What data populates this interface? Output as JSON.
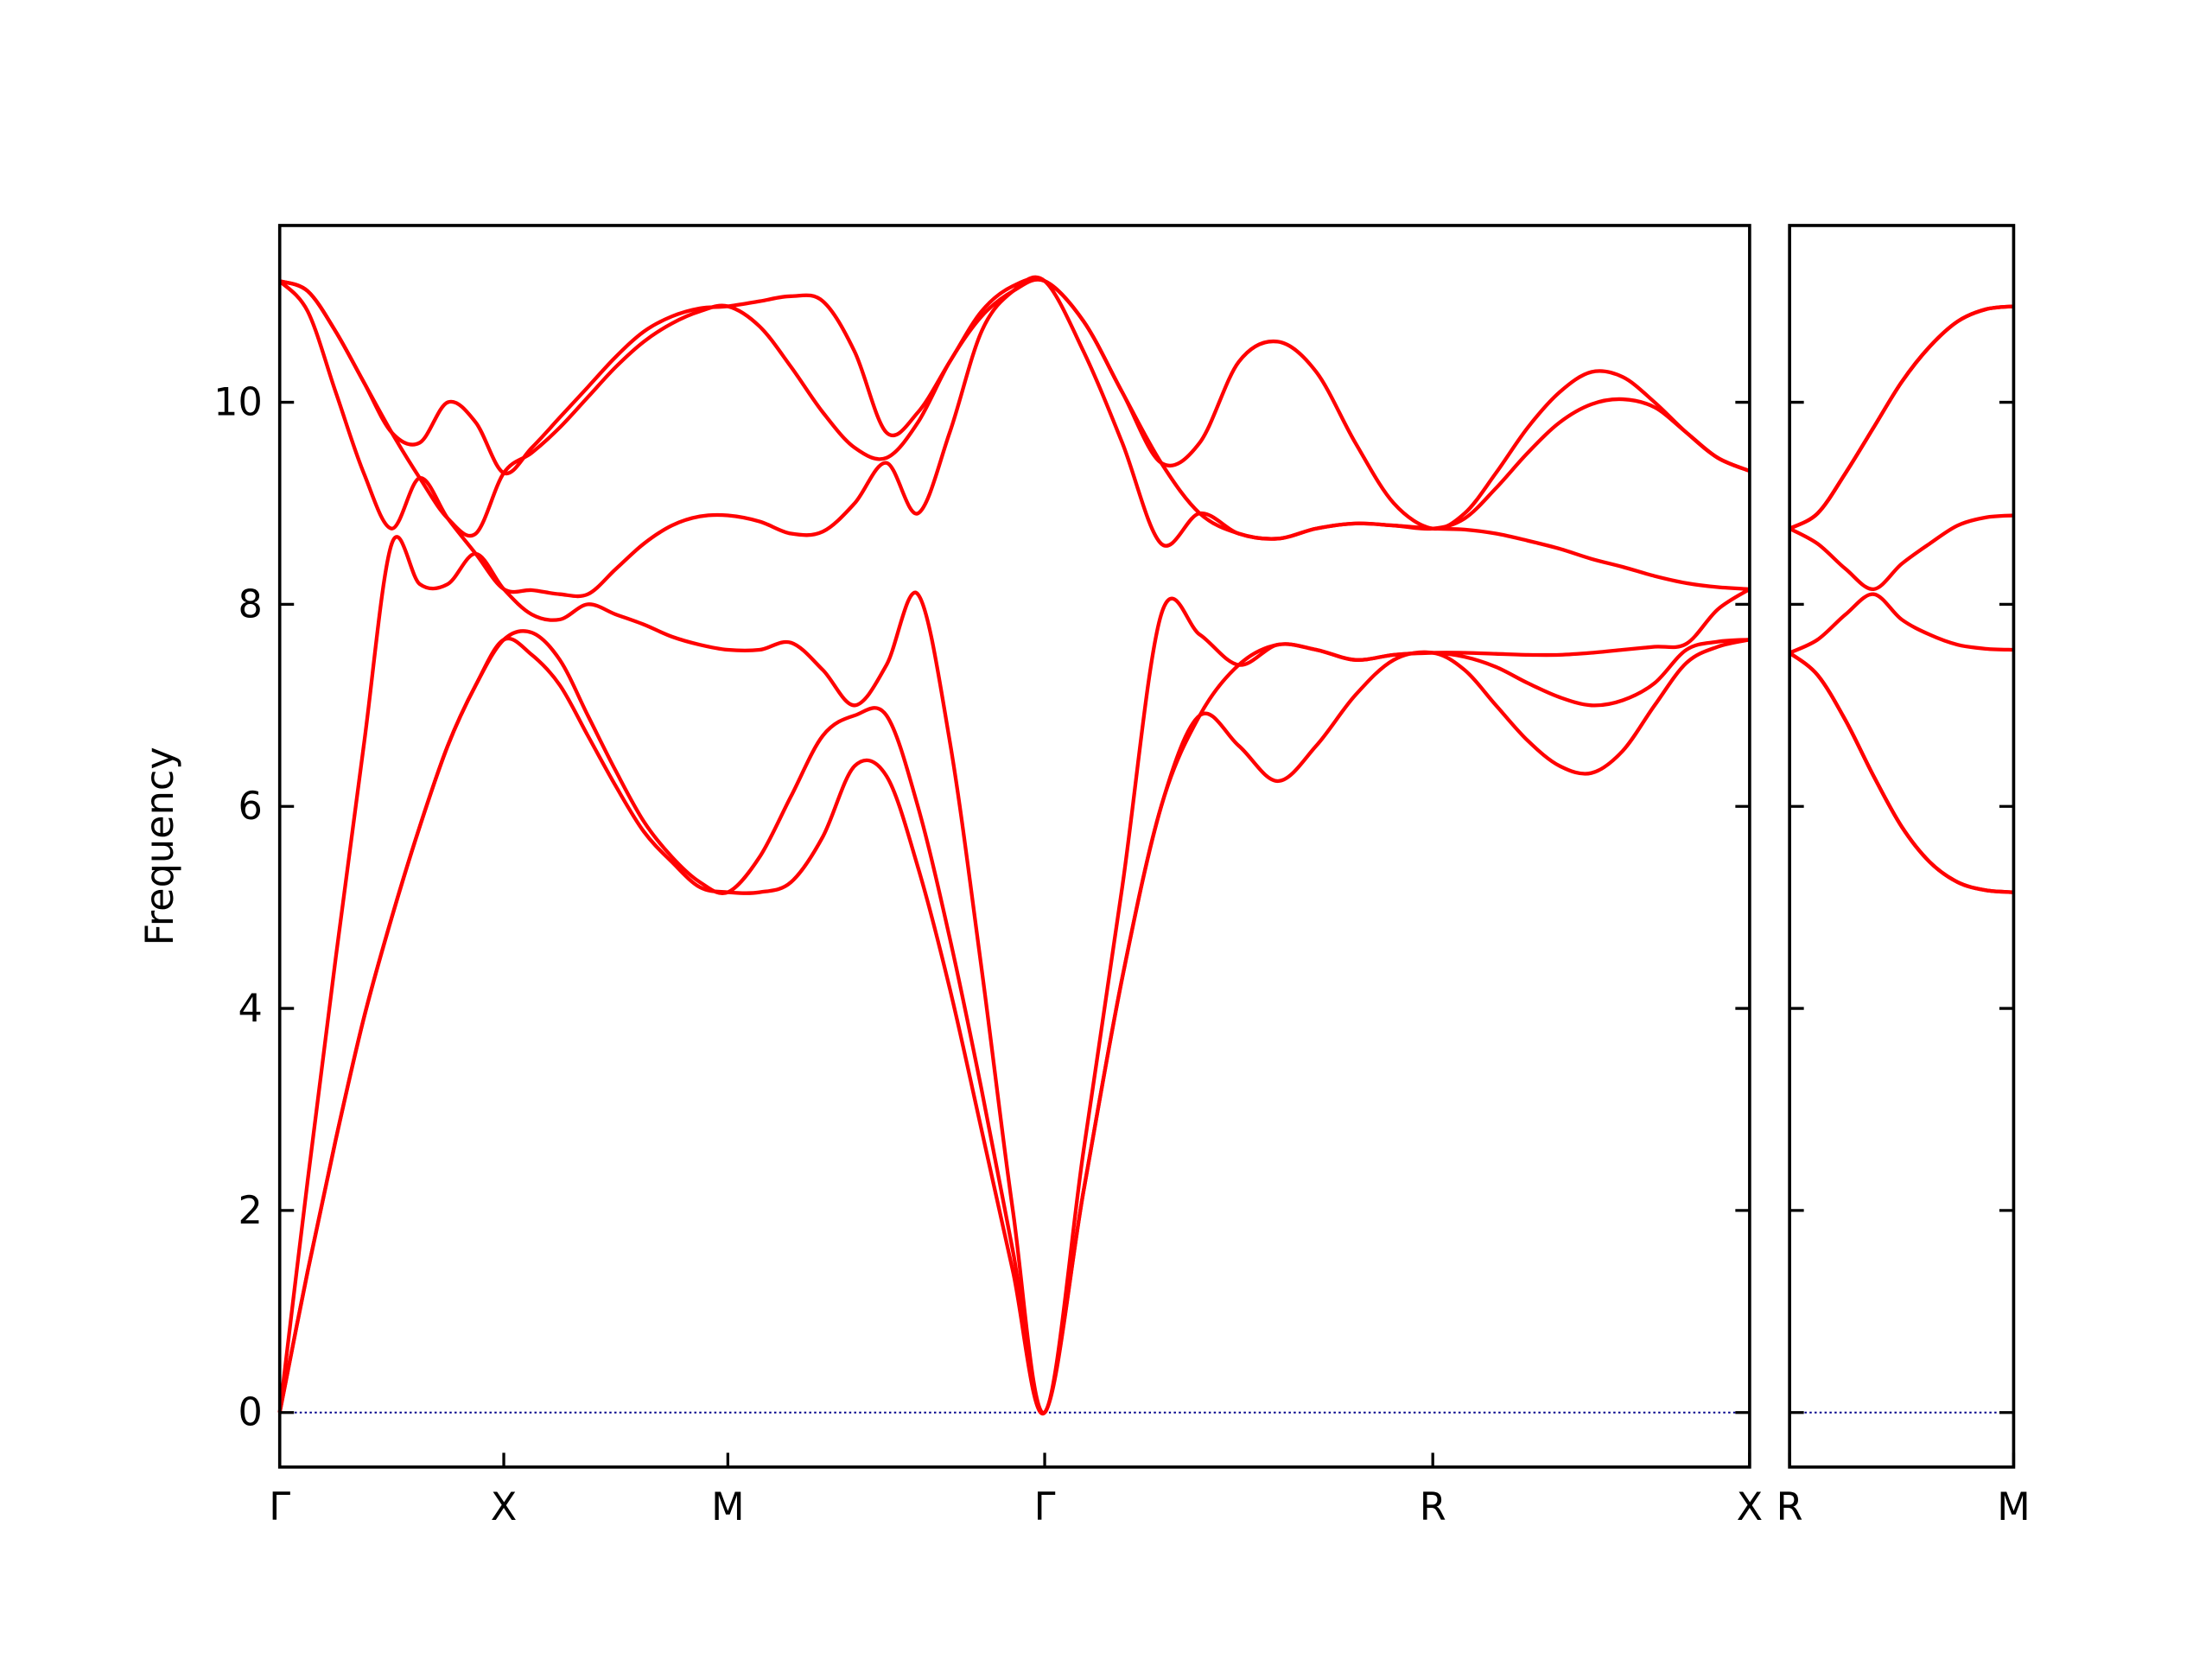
{
  "chart_data": [
    {
      "type": "line",
      "ylabel": "Frequency",
      "xlim": [
        0,
        3.28
      ],
      "ylim": [
        -0.54,
        11.75
      ],
      "yticks": [
        0,
        2,
        4,
        6,
        8,
        10
      ],
      "ytick_labels": true,
      "xticks": [
        {
          "value": 0,
          "label": "Γ"
        },
        {
          "value": 0.5,
          "label": "X"
        },
        {
          "value": 1.0,
          "label": "M"
        },
        {
          "value": 1.707,
          "label": "Γ"
        },
        {
          "value": 2.573,
          "label": "R"
        },
        {
          "value": 3.28,
          "label": "X"
        }
      ],
      "zero_line": {
        "y": 0,
        "color": "#00008b"
      },
      "x": [
        0,
        0.0625,
        0.125,
        0.1875,
        0.25,
        0.3125,
        0.375,
        0.4375,
        0.5,
        0.5625,
        0.625,
        0.6875,
        0.75,
        0.8125,
        0.875,
        0.9375,
        1.0,
        1.071,
        1.141,
        1.212,
        1.283,
        1.354,
        1.424,
        1.495,
        1.566,
        1.636,
        1.707,
        1.794,
        1.88,
        1.967,
        2.053,
        2.14,
        2.227,
        2.313,
        2.4,
        2.486,
        2.573,
        2.644,
        2.714,
        2.785,
        2.856,
        2.927,
        2.997,
        3.068,
        3.139,
        3.209,
        3.28
      ],
      "series": [
        {
          "color": "#ff0000",
          "values": [
            0,
            1.4,
            2.7,
            3.9,
            4.9,
            5.8,
            6.6,
            7.2,
            7.65,
            7.5,
            7.2,
            6.7,
            6.2,
            5.75,
            5.45,
            5.2,
            5.15,
            5.15,
            5.25,
            5.7,
            6.4,
            6.3,
            5.4,
            4.2,
            2.8,
            1.4,
            0,
            2.2,
            4.3,
            6.0,
            6.9,
            6.6,
            6.25,
            6.6,
            7.1,
            7.45,
            7.52,
            7.35,
            7.0,
            6.65,
            6.4,
            6.33,
            6.55,
            7.0,
            7.42,
            7.58,
            7.65
          ]
        },
        {
          "color": "#ff0000",
          "values": [
            0,
            1.4,
            2.7,
            3.9,
            4.9,
            5.8,
            6.6,
            7.2,
            7.65,
            7.72,
            7.45,
            6.9,
            6.35,
            5.85,
            5.5,
            5.25,
            5.15,
            5.5,
            6.1,
            6.7,
            6.9,
            6.9,
            6.0,
            4.7,
            3.2,
            1.6,
            0,
            2.2,
            4.3,
            6.0,
            6.9,
            7.4,
            7.6,
            7.55,
            7.45,
            7.5,
            7.52,
            7.48,
            7.38,
            7.22,
            7.08,
            7.0,
            7.05,
            7.22,
            7.55,
            7.63,
            7.65
          ]
        },
        {
          "color": "#ff0000",
          "values": [
            0,
            2.3,
            4.5,
            6.6,
            8.6,
            8.2,
            8.2,
            8.5,
            8.15,
            7.9,
            7.85,
            8.0,
            7.9,
            7.8,
            7.68,
            7.6,
            7.55,
            7.55,
            7.62,
            7.35,
            7.0,
            7.4,
            8.1,
            6.65,
            4.4,
            2.0,
            0,
            2.6,
            5.2,
            7.9,
            7.7,
            7.4,
            7.6,
            7.55,
            7.45,
            7.5,
            7.52,
            7.52,
            7.51,
            7.5,
            7.5,
            7.52,
            7.55,
            7.58,
            7.61,
            7.95,
            8.15
          ]
        },
        {
          "color": "#ff0000",
          "values": [
            11.2,
            10.9,
            10.1,
            9.3,
            8.75,
            9.25,
            8.85,
            8.5,
            8.15,
            8.14,
            8.1,
            8.1,
            8.35,
            8.6,
            8.78,
            8.87,
            8.88,
            8.82,
            8.7,
            8.72,
            9.0,
            9.4,
            8.9,
            9.7,
            10.7,
            11.1,
            11.2,
            10.5,
            9.6,
            8.6,
            8.9,
            8.7,
            8.65,
            8.75,
            8.8,
            8.78,
            8.75,
            8.74,
            8.7,
            8.63,
            8.55,
            8.45,
            8.37,
            8.28,
            8.21,
            8.17,
            8.15
          ]
        },
        {
          "color": "#ff0000",
          "values": [
            11.2,
            11.1,
            10.7,
            10.2,
            9.7,
            9.25,
            8.85,
            8.7,
            9.3,
            9.5,
            9.75,
            10.05,
            10.35,
            10.6,
            10.78,
            10.9,
            10.95,
            10.75,
            10.35,
            9.9,
            9.55,
            9.45,
            9.8,
            10.4,
            10.85,
            11.1,
            11.2,
            10.8,
            10.1,
            9.4,
            8.9,
            8.7,
            8.65,
            8.75,
            8.8,
            8.78,
            8.75,
            8.85,
            9.15,
            9.5,
            9.8,
            9.98,
            10.03,
            9.95,
            9.7,
            9.45,
            9.32
          ]
        },
        {
          "color": "#ff0000",
          "values": [
            11.2,
            11.1,
            10.7,
            10.2,
            9.7,
            9.6,
            10.0,
            9.8,
            9.3,
            9.55,
            9.85,
            10.15,
            10.45,
            10.7,
            10.85,
            10.93,
            10.95,
            11.0,
            11.05,
            11.0,
            10.5,
            9.7,
            9.9,
            10.4,
            10.9,
            11.15,
            11.2,
            10.8,
            10.1,
            9.4,
            9.6,
            10.4,
            10.6,
            10.3,
            9.6,
            9.0,
            8.75,
            8.9,
            9.3,
            9.75,
            10.1,
            10.3,
            10.25,
            10.0,
            9.7,
            9.45,
            9.32
          ]
        }
      ]
    },
    {
      "type": "line",
      "xlim": [
        3.28,
        3.78
      ],
      "ylim": [
        -0.54,
        11.75
      ],
      "yticks": [
        0,
        2,
        4,
        6,
        8,
        10
      ],
      "ytick_labels": false,
      "xticks": [
        {
          "value": 3.28,
          "label": "R"
        },
        {
          "value": 3.78,
          "label": "M"
        }
      ],
      "zero_line": {
        "y": 0,
        "color": "#00008b"
      },
      "x": [
        3.28,
        3.3425,
        3.405,
        3.4675,
        3.53,
        3.5925,
        3.655,
        3.7175,
        3.78
      ],
      "series": [
        {
          "color": "#ff0000",
          "values": [
            7.52,
            7.3,
            6.85,
            6.3,
            5.8,
            5.45,
            5.25,
            5.17,
            5.15
          ]
        },
        {
          "color": "#ff0000",
          "values": [
            7.52,
            7.3,
            6.85,
            6.3,
            5.8,
            5.45,
            5.25,
            5.17,
            5.15
          ]
        },
        {
          "color": "#ff0000",
          "values": [
            7.52,
            7.65,
            7.9,
            8.1,
            7.85,
            7.7,
            7.6,
            7.56,
            7.55
          ]
        },
        {
          "color": "#ff0000",
          "values": [
            8.75,
            8.6,
            8.35,
            8.15,
            8.4,
            8.6,
            8.78,
            8.86,
            8.88
          ]
        },
        {
          "color": "#ff0000",
          "values": [
            8.75,
            8.9,
            9.3,
            9.75,
            10.2,
            10.55,
            10.8,
            10.92,
            10.95
          ]
        },
        {
          "color": "#ff0000",
          "values": [
            8.75,
            8.9,
            9.3,
            9.75,
            10.2,
            10.55,
            10.8,
            10.92,
            10.95
          ]
        }
      ]
    }
  ]
}
